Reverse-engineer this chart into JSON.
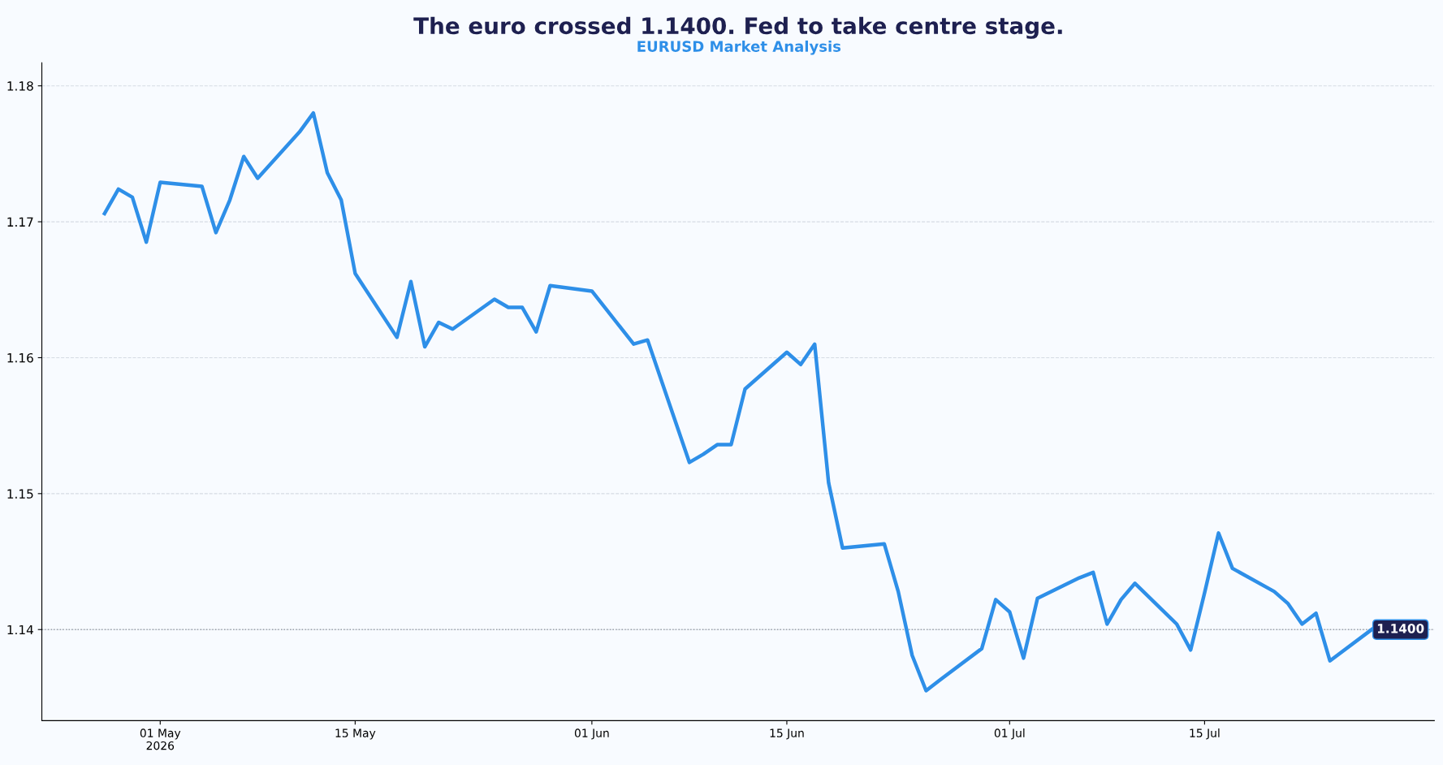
{
  "chart_data": {
    "type": "line",
    "title": "The euro crossed 1.1400. Fed to take centre stage.",
    "subtitle": "EURUSD Market Analysis",
    "xlim": [
      "2026-04-22T12:00",
      "2026-07-31T12:00"
    ],
    "xticks": [
      {
        "value": "2026-05-01",
        "label": "01 May\n2026"
      },
      {
        "value": "2026-05-15",
        "label": "15 May"
      },
      {
        "value": "2026-06-01",
        "label": "01 Jun"
      },
      {
        "value": "2026-06-15",
        "label": "15 Jun"
      },
      {
        "value": "2026-07-01",
        "label": "01 Jul"
      },
      {
        "value": "2026-07-15",
        "label": "15 Jul"
      }
    ],
    "ylim": [
      1.1333,
      1.1817
    ],
    "yticks": [
      1.14,
      1.15,
      1.16,
      1.17,
      1.18
    ],
    "grid": "y",
    "legend": false,
    "marker": "none",
    "line_style": "solid",
    "ref_lines": [
      {
        "axis": "y",
        "value": 1.14,
        "label": "1.1400",
        "color": "#9aa0a8",
        "line_style": "dotted"
      }
    ],
    "series": [
      {
        "color": "#2e8fe8",
        "x": [
          "2026-04-27",
          "2026-04-28",
          "2026-04-29",
          "2026-04-30",
          "2026-05-01",
          "2026-05-04",
          "2026-05-05",
          "2026-05-06",
          "2026-05-07",
          "2026-05-08",
          "2026-05-11",
          "2026-05-12",
          "2026-05-13",
          "2026-05-14",
          "2026-05-15",
          "2026-05-18",
          "2026-05-19",
          "2026-05-20",
          "2026-05-21",
          "2026-05-22",
          "2026-05-25",
          "2026-05-26",
          "2026-05-27",
          "2026-05-28",
          "2026-05-29",
          "2026-06-01",
          "2026-06-02",
          "2026-06-03",
          "2026-06-04",
          "2026-06-05",
          "2026-06-08",
          "2026-06-09",
          "2026-06-10",
          "2026-06-11",
          "2026-06-12",
          "2026-06-15",
          "2026-06-16",
          "2026-06-17",
          "2026-06-18",
          "2026-06-19",
          "2026-06-22",
          "2026-06-23",
          "2026-06-24",
          "2026-06-25",
          "2026-06-26",
          "2026-06-29",
          "2026-06-30",
          "2026-07-01",
          "2026-07-02",
          "2026-07-03",
          "2026-07-06",
          "2026-07-07",
          "2026-07-08",
          "2026-07-09",
          "2026-07-10",
          "2026-07-13",
          "2026-07-14",
          "2026-07-15",
          "2026-07-16",
          "2026-07-17",
          "2026-07-20",
          "2026-07-21",
          "2026-07-22",
          "2026-07-23",
          "2026-07-24",
          "2026-07-27"
        ],
        "values": [
          1.1706,
          1.1724,
          1.1718,
          1.1685,
          1.1729,
          1.1726,
          1.1692,
          1.1716,
          1.1748,
          1.1732,
          1.1766,
          1.178,
          1.1736,
          1.1716,
          1.1662,
          1.1615,
          1.1656,
          1.1608,
          1.1626,
          1.1621,
          1.1643,
          1.1637,
          1.1637,
          1.1619,
          1.1653,
          1.1649,
          1.1636,
          1.1623,
          1.161,
          1.1613,
          1.1523,
          1.1529,
          1.1536,
          1.1536,
          1.1577,
          1.1604,
          1.1595,
          1.161,
          1.1508,
          1.146,
          1.1463,
          1.1428,
          1.1381,
          1.1355,
          1.1363,
          1.1386,
          1.1422,
          1.1413,
          1.1379,
          1.1423,
          1.1438,
          1.1442,
          1.1404,
          1.1422,
          1.1434,
          1.1404,
          1.1385,
          1.1427,
          1.1471,
          1.1445,
          1.1428,
          1.1419,
          1.1404,
          1.1412,
          1.1377,
          1.14
        ]
      }
    ]
  }
}
